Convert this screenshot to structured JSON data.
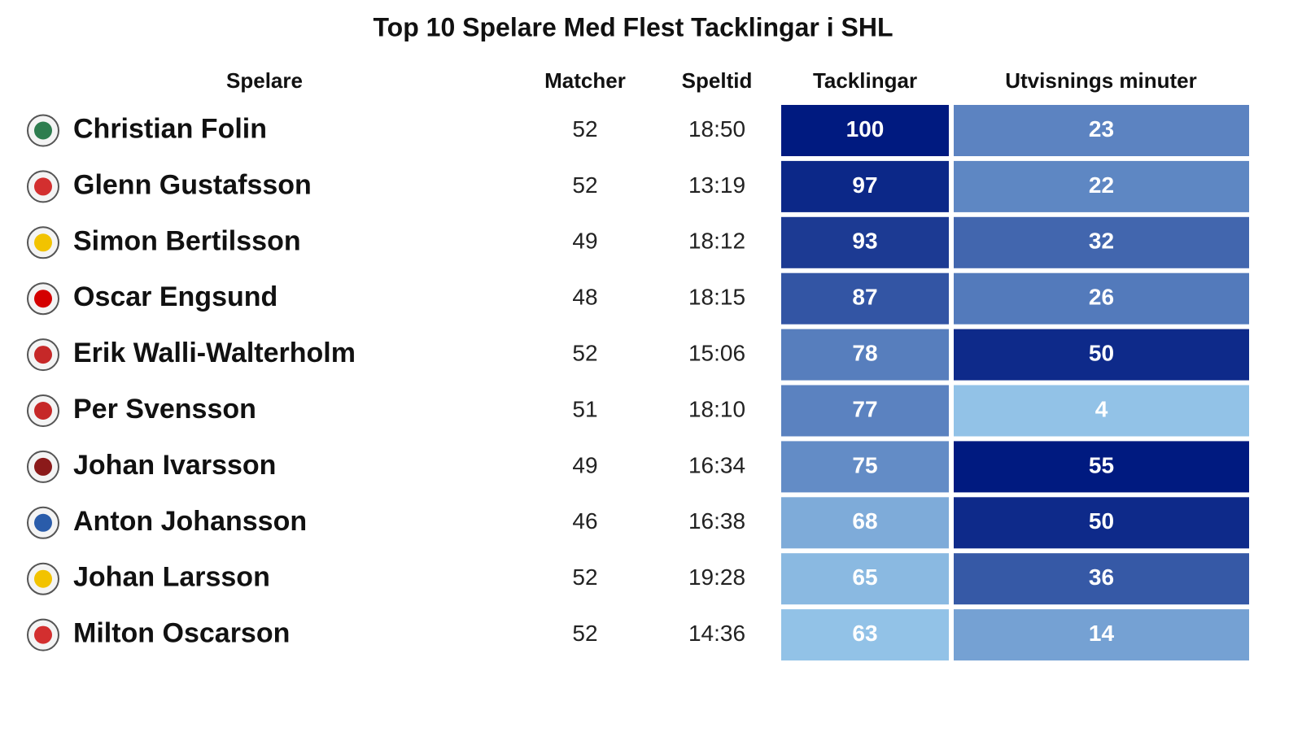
{
  "title": "Top 10 Spelare Med Flest Tacklingar i SHL",
  "table": {
    "columns": [
      "Spelare",
      "Matcher",
      "Speltid",
      "Tacklingar",
      "Utvisnings minuter"
    ],
    "rows": [
      [
        "Christian Folin",
        52,
        "18:50",
        100,
        23
      ],
      [
        "Glenn Gustafsson",
        52,
        "13:19",
        97,
        22
      ],
      [
        "Simon Bertilsson",
        49,
        "18:12",
        93,
        32
      ],
      [
        "Oscar Engsund",
        48,
        "18:15",
        87,
        26
      ],
      [
        "Erik Walli-Walterholm",
        52,
        "15:06",
        78,
        50
      ],
      [
        "Per Svensson",
        51,
        "18:10",
        77,
        4
      ],
      [
        "Johan Ivarsson",
        49,
        "16:34",
        75,
        55
      ],
      [
        "Anton Johansson",
        46,
        "16:38",
        68,
        50
      ],
      [
        "Johan Larsson",
        52,
        "19:28",
        65,
        36
      ],
      [
        "Milton Oscarson",
        52,
        "14:36",
        63,
        14
      ]
    ]
  }
}
